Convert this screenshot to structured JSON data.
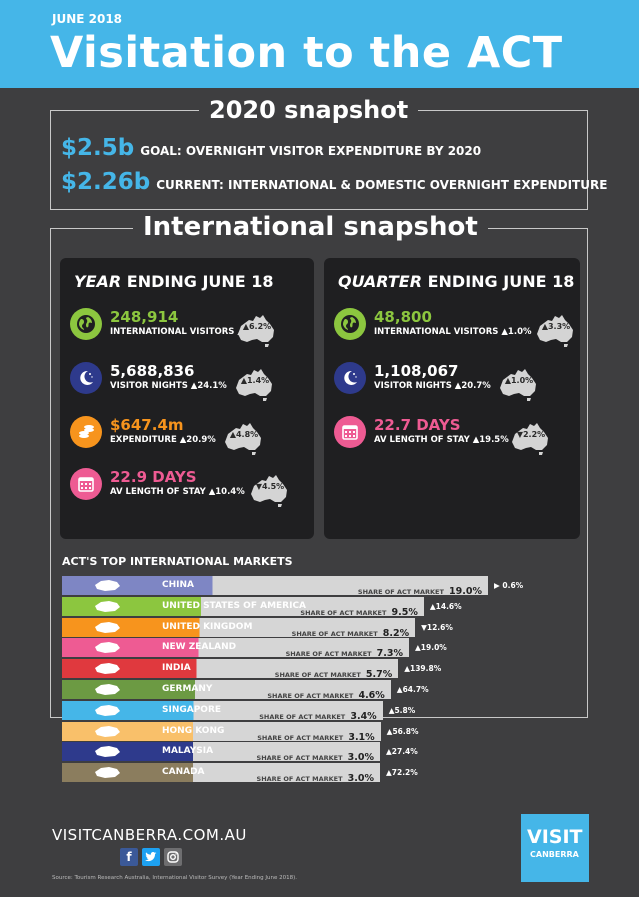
{
  "header": {
    "date": "JUNE 2018",
    "title": "Visitation to the ACT"
  },
  "snapshot2020": {
    "title": "2020 snapshot",
    "goal": {
      "value": "$2.5b",
      "label": "GOAL: OVERNIGHT VISITOR EXPENDITURE BY 2020"
    },
    "current": {
      "value": "$2.26b",
      "label": "CURRENT: INTERNATIONAL & DOMESTIC OVERNIGHT EXPENDITURE"
    }
  },
  "international": {
    "title": "International snapshot",
    "year": {
      "title_em": "YEAR",
      "title_rest": " ENDING JUNE 18",
      "stats": [
        {
          "value": "248,914",
          "label": "INTERNATIONAL VISITORS ▲12.4%",
          "aus": "▲6.2%",
          "color": "#8cc63f",
          "icon": "globe-icon"
        },
        {
          "value": "5,688,836",
          "label": "VISITOR NIGHTS ▲24.1%",
          "aus": "▲1.4%",
          "color": "#ffffff",
          "icon": "moon-icon"
        },
        {
          "value": "$647.4m",
          "label": "EXPENDITURE ▲20.9%",
          "aus": "▲4.8%",
          "color": "#f7941d",
          "icon": "coins-icon"
        },
        {
          "value": "22.9 DAYS",
          "label": "AV LENGTH OF STAY ▲10.4%",
          "aus": "▼4.5%",
          "color": "#ee5b93",
          "icon": "calendar-icon"
        }
      ]
    },
    "quarter": {
      "title_em": "QUARTER",
      "title_rest": " ENDING JUNE 18",
      "stats": [
        {
          "value": "48,800",
          "label": "INTERNATIONAL VISITORS ▲1.0%",
          "aus": "▲3.3%",
          "color": "#8cc63f",
          "icon": "globe-icon"
        },
        {
          "value": "1,108,067",
          "label": "VISITOR NIGHTS ▲20.7%",
          "aus": "▲1.0%",
          "color": "#ffffff",
          "icon": "moon-icon"
        },
        {
          "value": "22.7 DAYS",
          "label": "AV LENGTH OF STAY ▲19.5%",
          "aus": "▼2.2%",
          "color": "#ee5b93",
          "icon": "calendar-icon"
        }
      ]
    }
  },
  "markets": {
    "title": "ACT'S TOP INTERNATIONAL MARKETS",
    "share_label": "SHARE OF ACT MARKET",
    "rows": [
      {
        "name": "CHINA",
        "share": "19.0%",
        "share_value": 19.0,
        "change": "▶ 0.6%",
        "color": "#7e86c4",
        "icon": "china-map-icon"
      },
      {
        "name": "UNITED STATES OF AMERICA",
        "share": "9.5%",
        "share_value": 9.5,
        "change": "▲14.6%",
        "color": "#8cc63f",
        "icon": "usa-map-icon"
      },
      {
        "name": "UNITED KINGDOM",
        "share": "8.2%",
        "share_value": 8.2,
        "change": "▼12.6%",
        "color": "#f7941d",
        "icon": "uk-map-icon"
      },
      {
        "name": "NEW ZEALAND",
        "share": "7.3%",
        "share_value": 7.3,
        "change": "▲19.0%",
        "color": "#ee5b93",
        "icon": "nz-map-icon"
      },
      {
        "name": "INDIA",
        "share": "5.7%",
        "share_value": 5.7,
        "change": "▲139.8%",
        "color": "#e0393e",
        "icon": "india-map-icon"
      },
      {
        "name": "GERMANY",
        "share": "4.6%",
        "share_value": 4.6,
        "change": "▲64.7%",
        "color": "#6c9a43",
        "icon": "germany-map-icon"
      },
      {
        "name": "SINGAPORE",
        "share": "3.4%",
        "share_value": 3.4,
        "change": "▲5.8%",
        "color": "#45b6e8",
        "icon": "singapore-map-icon"
      },
      {
        "name": "HONG KONG",
        "share": "3.1%",
        "share_value": 3.1,
        "change": "▲56.8%",
        "color": "#f9c06a",
        "icon": "hongkong-map-icon"
      },
      {
        "name": "MALAYSIA",
        "share": "3.0%",
        "share_value": 3.0,
        "change": "▲27.4%",
        "color": "#2e3a8c",
        "icon": "malaysia-map-icon"
      },
      {
        "name": "CANADA",
        "share": "3.0%",
        "share_value": 3.0,
        "change": "▲72.2%",
        "color": "#8b7d5e",
        "icon": "canada-map-icon"
      }
    ]
  },
  "footer": {
    "website": "VISITCANBERRA.COM.AU",
    "social": {
      "facebook": "f",
      "twitter": "t"
    },
    "source": "Source: Tourism Research Australia, International Visitor Survey (Year Ending June 2018).",
    "logo": {
      "line1": "VISIT",
      "line2": "CANBERRA"
    }
  }
}
